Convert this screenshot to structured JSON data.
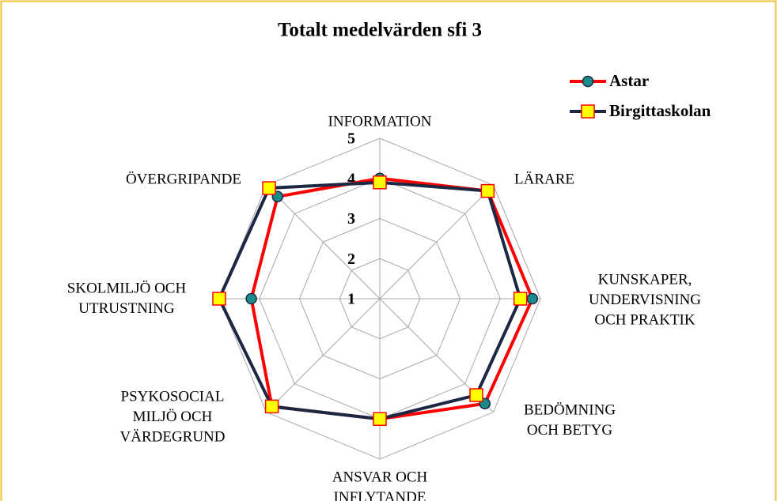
{
  "chart_data": {
    "type": "radar",
    "title": "Totalt medelvärden  sfi 3",
    "categories": [
      [
        "INFORMATION"
      ],
      [
        "LÄRARE"
      ],
      [
        "KUNSKAPER,",
        "UNDERVISNING",
        "OCH PRAKTIK"
      ],
      [
        "BEDÖMNING",
        "OCH BETYG"
      ],
      [
        "ANSVAR OCH",
        "INFLYTANDE"
      ],
      [
        "PSYKOSOCIAL",
        "MILJÖ OCH",
        "VÄRDEGRUND"
      ],
      [
        "SKOLMILJÖ OCH",
        "UTRUSTNING"
      ],
      [
        "ÖVERGRIPANDE"
      ]
    ],
    "series": [
      {
        "name": "Astar",
        "color": "#ff0000",
        "marker": "circle",
        "marker_color": "#1a8c8c",
        "values": [
          4.0,
          4.8,
          4.8,
          4.7,
          4.0,
          4.8,
          4.2,
          4.6
        ]
      },
      {
        "name": "Birgittaskolan",
        "color": "#1c2843",
        "marker": "square",
        "marker_color": "#ffff00",
        "values": [
          3.9,
          4.8,
          4.5,
          4.4,
          4.0,
          4.8,
          5.0,
          4.9
        ]
      }
    ],
    "ylim": [
      1,
      5
    ],
    "yticks": [
      1,
      2,
      3,
      4,
      5
    ],
    "grid": true,
    "legend": "top-right"
  }
}
